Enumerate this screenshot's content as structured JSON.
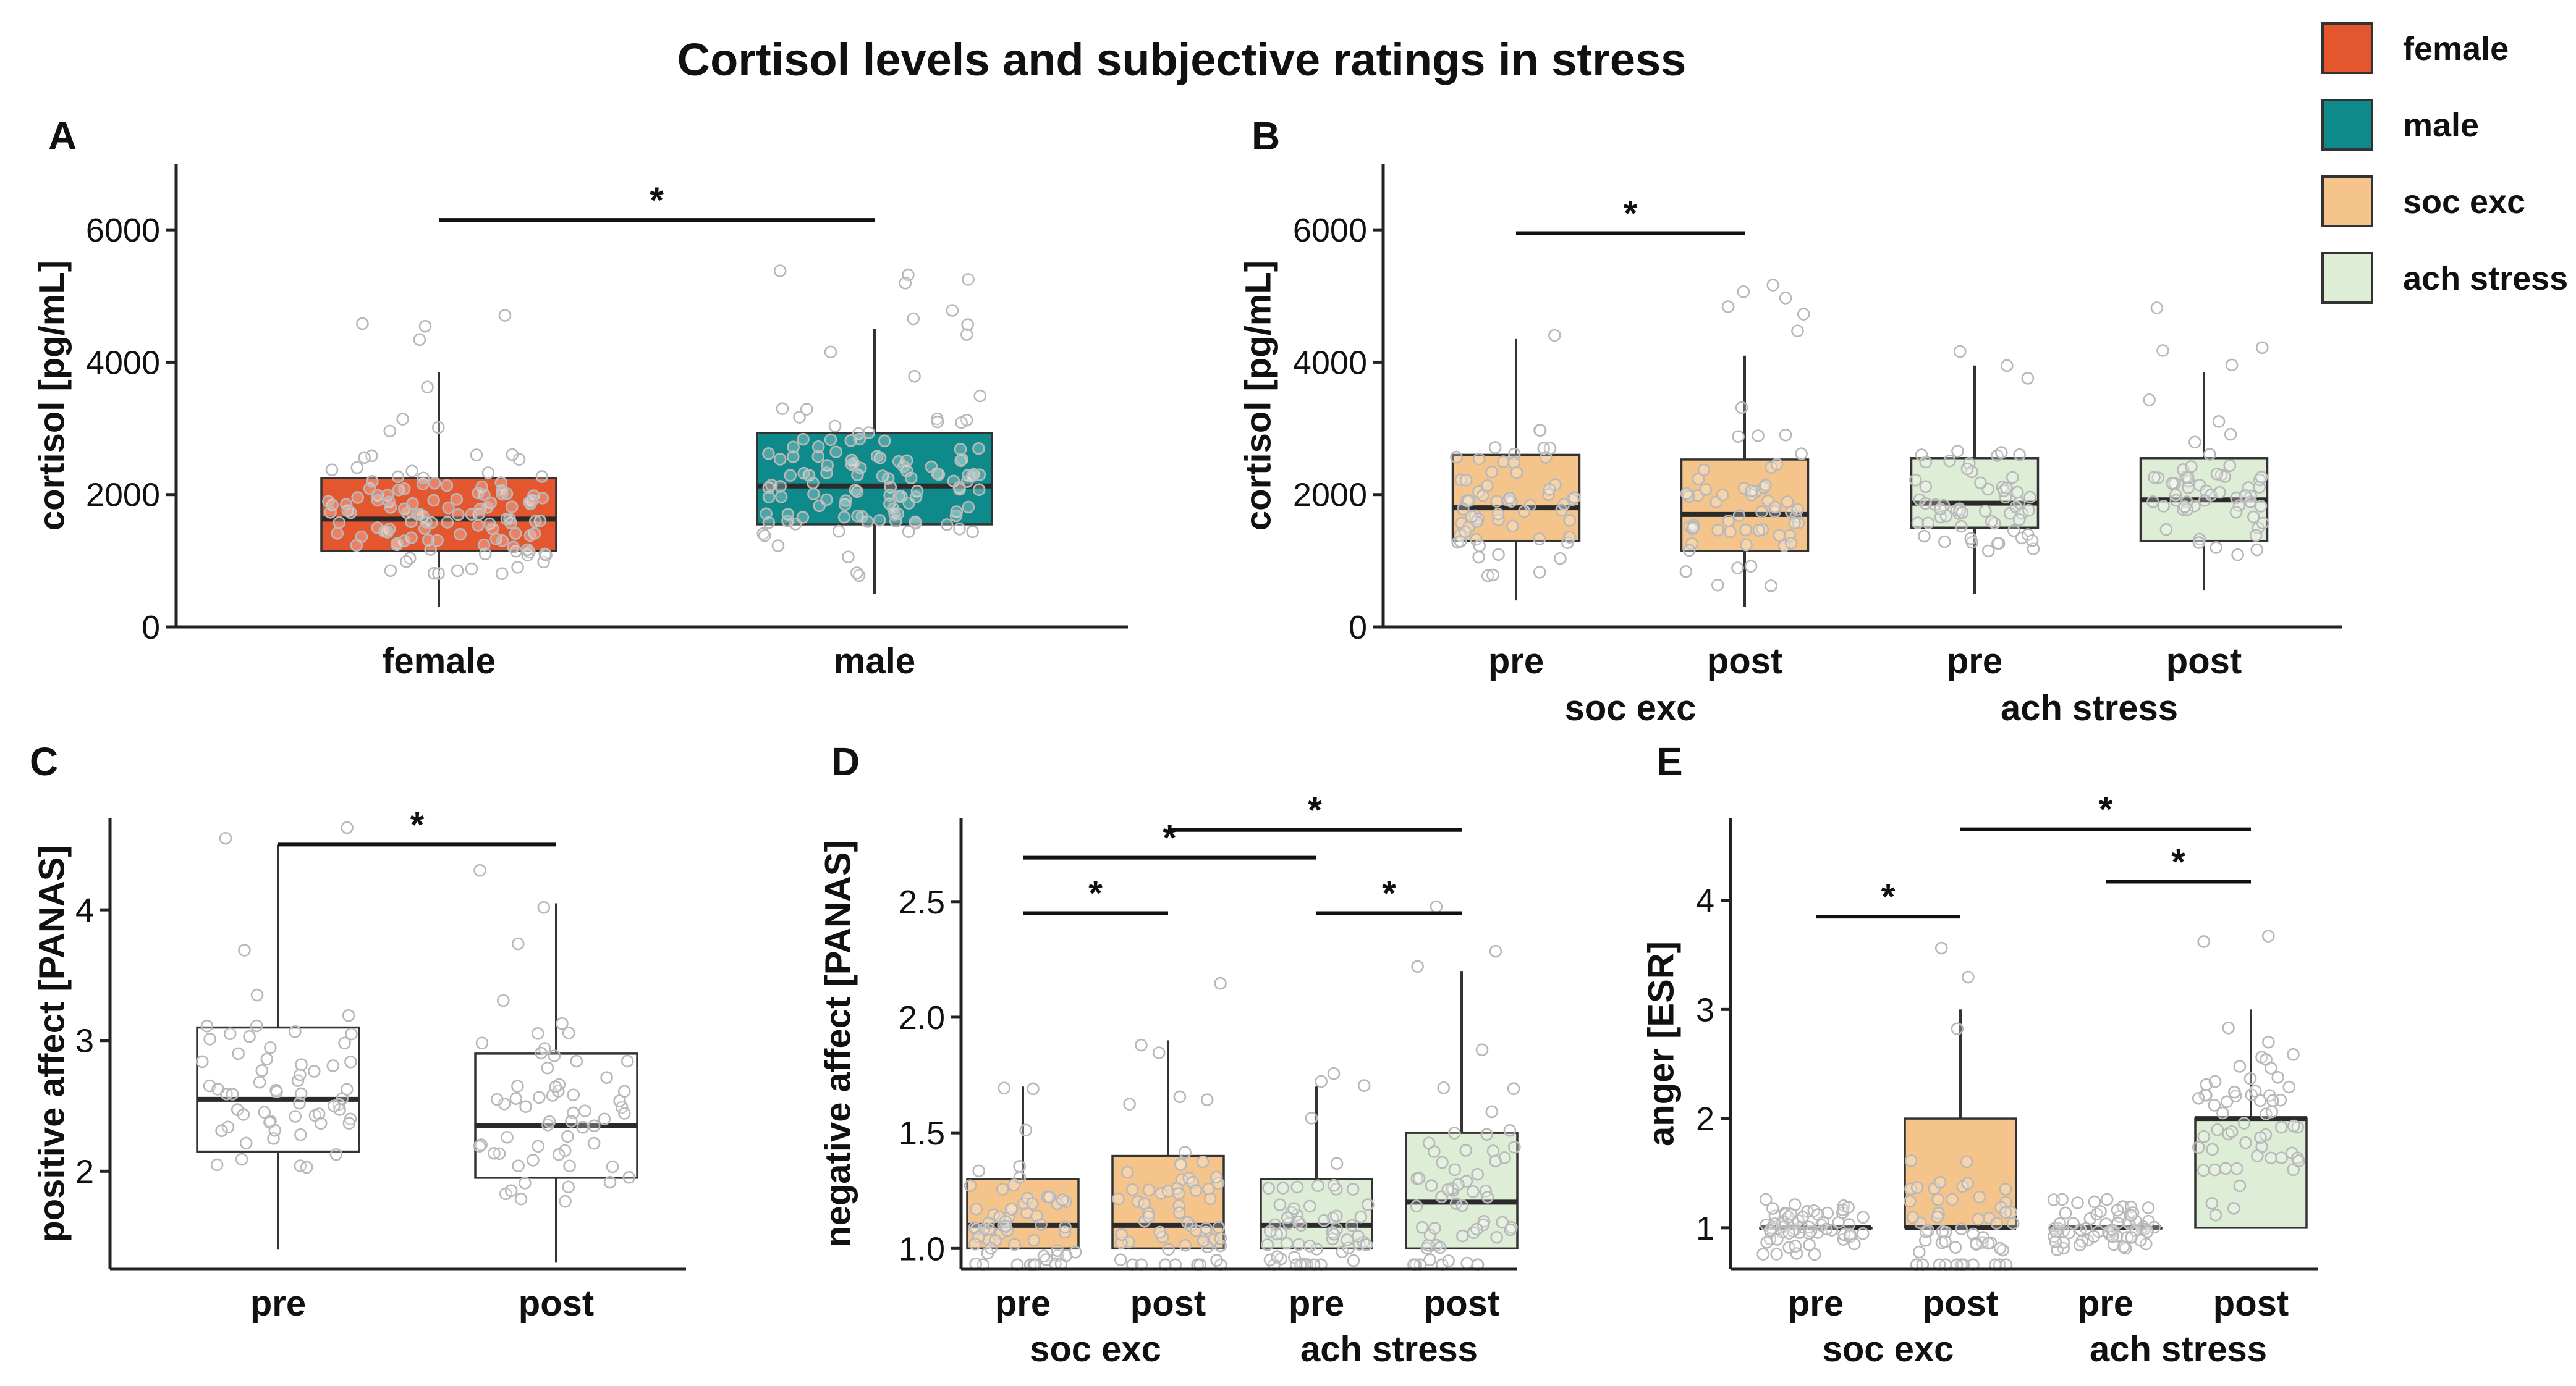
{
  "figure_title": "Cortisol levels and subjective ratings in stress",
  "legend": [
    {
      "label": "female",
      "color": "#E4572E"
    },
    {
      "label": "male",
      "color": "#0F8A8A"
    },
    {
      "label": "soc exc",
      "color": "#F5C48A"
    },
    {
      "label": "ach stress",
      "color": "#DDEDD6"
    }
  ],
  "chart_data": [
    {
      "panel": "A",
      "type": "box",
      "ylabel": "cortisol [pg/mL]",
      "ylim": [
        0,
        7000
      ],
      "yticks": [
        0,
        2000,
        4000,
        6000
      ],
      "ytick_labels": [
        "0",
        "2000",
        "4000",
        "6000"
      ],
      "categories": [
        "female",
        "male"
      ],
      "groups": [],
      "boxes": [
        {
          "category": "female",
          "color": "#E4572E",
          "whisker_low": 300,
          "q1": 1150,
          "median": 1630,
          "q3": 2250,
          "whisker_high": 3850
        },
        {
          "category": "male",
          "color": "#0F8A8A",
          "whisker_low": 500,
          "q1": 1550,
          "median": 2130,
          "q3": 2930,
          "whisker_high": 4500
        }
      ],
      "significance": [
        {
          "from": 0,
          "to": 1,
          "y": 6150,
          "label": "*"
        }
      ]
    },
    {
      "panel": "B",
      "type": "box",
      "ylabel": "cortisol [pg/mL]",
      "ylim": [
        0,
        7000
      ],
      "yticks": [
        0,
        2000,
        4000,
        6000
      ],
      "ytick_labels": [
        "0",
        "2000",
        "4000",
        "6000"
      ],
      "categories": [
        "pre",
        "post",
        "pre",
        "post"
      ],
      "groups": [
        "soc exc",
        "ach stress"
      ],
      "boxes": [
        {
          "category": "pre",
          "group": "soc exc",
          "color": "#F5C48A",
          "whisker_low": 400,
          "q1": 1300,
          "median": 1800,
          "q3": 2600,
          "whisker_high": 4350
        },
        {
          "category": "post",
          "group": "soc exc",
          "color": "#F5C48A",
          "whisker_low": 300,
          "q1": 1150,
          "median": 1700,
          "q3": 2530,
          "whisker_high": 4100
        },
        {
          "category": "pre",
          "group": "ach stress",
          "color": "#DDEDD6",
          "whisker_low": 500,
          "q1": 1500,
          "median": 1870,
          "q3": 2550,
          "whisker_high": 3950
        },
        {
          "category": "post",
          "group": "ach stress",
          "color": "#DDEDD6",
          "whisker_low": 550,
          "q1": 1300,
          "median": 1920,
          "q3": 2550,
          "whisker_high": 3850
        }
      ],
      "significance": [
        {
          "from": 0,
          "to": 1,
          "y": 5950,
          "label": "*"
        }
      ]
    },
    {
      "panel": "C",
      "type": "box",
      "ylabel": "positive affect [PANAS]",
      "ylim": [
        1.25,
        4.7
      ],
      "yticks": [
        2,
        3,
        4
      ],
      "ytick_labels": [
        "2",
        "3",
        "4"
      ],
      "categories": [
        "pre",
        "post"
      ],
      "groups": [],
      "boxes": [
        {
          "category": "pre",
          "color": "#FFFFFF",
          "whisker_low": 1.4,
          "q1": 2.15,
          "median": 2.55,
          "q3": 3.1,
          "whisker_high": 4.5
        },
        {
          "category": "post",
          "color": "#FFFFFF",
          "whisker_low": 1.3,
          "q1": 1.95,
          "median": 2.35,
          "q3": 2.9,
          "whisker_high": 4.05
        }
      ],
      "significance": [
        {
          "from": 0,
          "to": 1,
          "y": 4.5,
          "label": "*"
        }
      ]
    },
    {
      "panel": "D",
      "type": "box",
      "ylabel": "negative affect [PANAS]",
      "ylim": [
        0.91,
        2.86
      ],
      "yticks": [
        1.0,
        1.5,
        2.0,
        2.5
      ],
      "ytick_labels": [
        "1.0",
        "1.5",
        "2.0",
        "2.5"
      ],
      "categories": [
        "pre",
        "post",
        "pre",
        "post"
      ],
      "groups": [
        "soc exc",
        "ach stress"
      ],
      "boxes": [
        {
          "category": "pre",
          "group": "soc exc",
          "color": "#F5C48A",
          "whisker_low": 1.0,
          "q1": 1.0,
          "median": 1.1,
          "q3": 1.3,
          "whisker_high": 1.7
        },
        {
          "category": "post",
          "group": "soc exc",
          "color": "#F5C48A",
          "whisker_low": 1.0,
          "q1": 1.0,
          "median": 1.1,
          "q3": 1.4,
          "whisker_high": 1.9
        },
        {
          "category": "pre",
          "group": "ach stress",
          "color": "#DDEDD6",
          "whisker_low": 1.0,
          "q1": 1.0,
          "median": 1.1,
          "q3": 1.3,
          "whisker_high": 1.7
        },
        {
          "category": "post",
          "group": "ach stress",
          "color": "#DDEDD6",
          "whisker_low": 1.0,
          "q1": 1.0,
          "median": 1.2,
          "q3": 1.5,
          "whisker_high": 2.2
        }
      ],
      "significance": [
        {
          "from": 0,
          "to": 1,
          "y": 2.45,
          "label": "*"
        },
        {
          "from": 0,
          "to": 2,
          "y": 2.69,
          "label": "*"
        },
        {
          "from": 1,
          "to": 3,
          "y": 2.81,
          "label": "*"
        },
        {
          "from": 2,
          "to": 3,
          "y": 2.45,
          "label": "*"
        }
      ]
    },
    {
      "panel": "E",
      "type": "box",
      "ylabel": "anger [ESR]",
      "ylim": [
        0.62,
        4.75
      ],
      "yticks": [
        1,
        2,
        3,
        4
      ],
      "ytick_labels": [
        "1",
        "2",
        "3",
        "4"
      ],
      "categories": [
        "pre",
        "post",
        "pre",
        "post"
      ],
      "groups": [
        "soc exc",
        "ach stress"
      ],
      "boxes": [
        {
          "category": "pre",
          "group": "soc exc",
          "color": "#FFFFFF",
          "whisker_low": 1.0,
          "q1": 1.0,
          "median": 1.0,
          "q3": 1.0,
          "whisker_high": 1.0
        },
        {
          "category": "post",
          "group": "soc exc",
          "color": "#F5C48A",
          "whisker_low": 1.0,
          "q1": 1.0,
          "median": 1.0,
          "q3": 2.0,
          "whisker_high": 3.0
        },
        {
          "category": "pre",
          "group": "ach stress",
          "color": "#FFFFFF",
          "whisker_low": 1.0,
          "q1": 1.0,
          "median": 1.0,
          "q3": 1.0,
          "whisker_high": 1.0
        },
        {
          "category": "post",
          "group": "ach stress",
          "color": "#DDEDD6",
          "whisker_low": 1.0,
          "q1": 1.0,
          "median": 2.0,
          "q3": 2.0,
          "whisker_high": 3.0
        }
      ],
      "significance": [
        {
          "from": 0,
          "to": 1,
          "y": 3.85,
          "label": "*"
        },
        {
          "from": 2,
          "to": 3,
          "y": 4.17,
          "label": "*"
        },
        {
          "from": 1,
          "to": 3,
          "y": 4.65,
          "label": "*"
        }
      ]
    }
  ]
}
